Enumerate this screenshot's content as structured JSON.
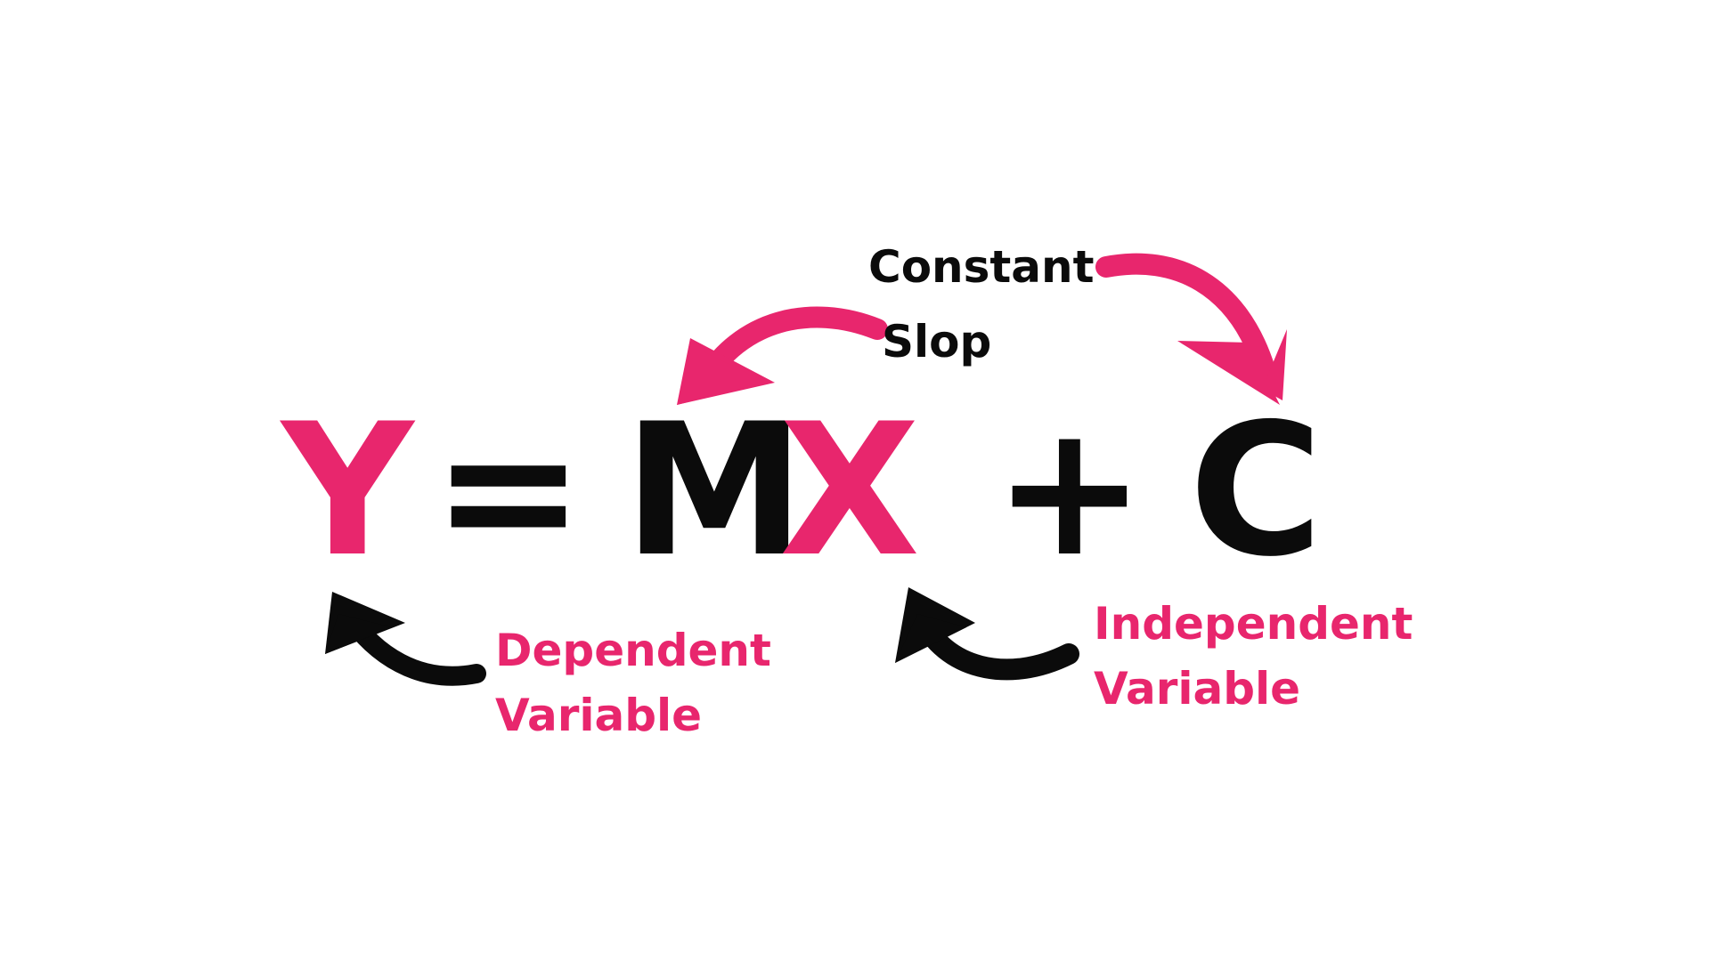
{
  "colors": {
    "accent": "#e8266d",
    "ink": "#0b0b0b",
    "background": "#ffffff"
  },
  "equation": {
    "y": "Y",
    "equals": "=",
    "m": "M",
    "x": "X",
    "plus": "+",
    "c": "C"
  },
  "labels": {
    "constant": "Constant",
    "slope": "Slop",
    "dependent_line1": "Dependent",
    "dependent_line2": "Variable",
    "independent_line1": "Independent",
    "independent_line2": "Variable"
  },
  "arrows": [
    {
      "name": "constant-arrow",
      "from": "Constant",
      "to": "C",
      "color": "#e8266d"
    },
    {
      "name": "slope-arrow",
      "from": "Slop",
      "to": "M",
      "color": "#e8266d"
    },
    {
      "name": "dependent-arrow",
      "from": "Dependent Variable",
      "to": "Y",
      "color": "#0b0b0b"
    },
    {
      "name": "independent-arrow",
      "from": "Independent Variable",
      "to": "X",
      "color": "#0b0b0b"
    }
  ]
}
